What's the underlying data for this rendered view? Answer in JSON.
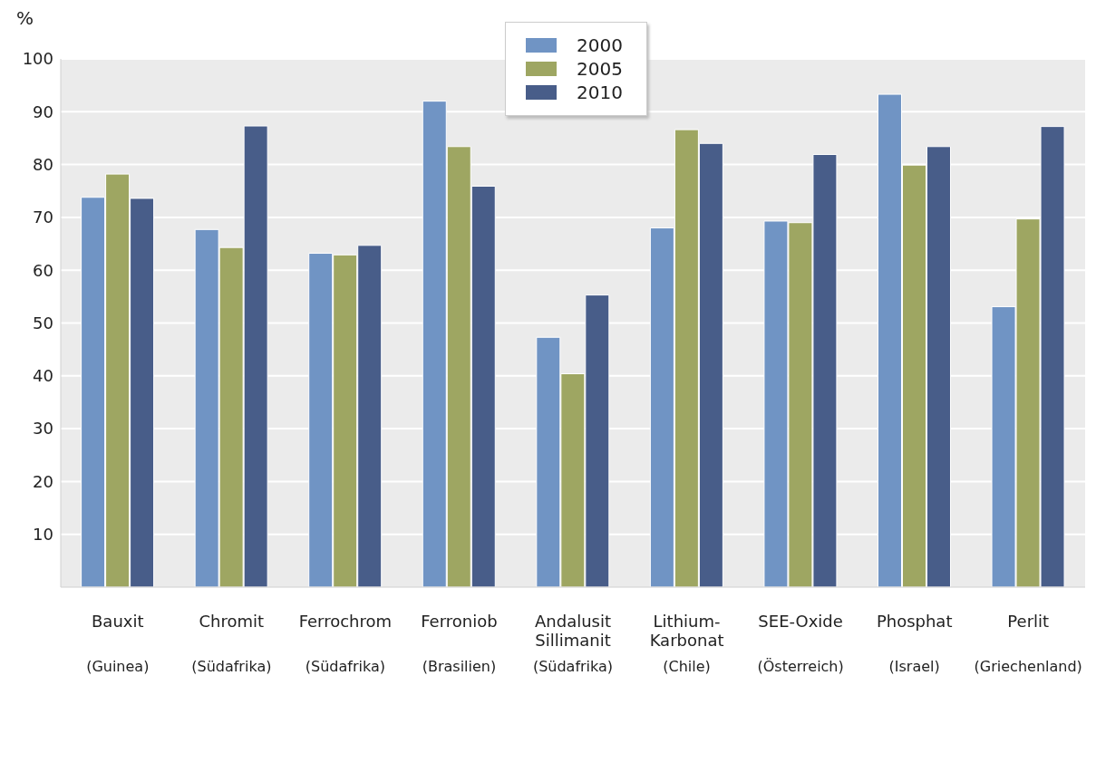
{
  "chart_data": {
    "type": "bar",
    "ylabel": "%",
    "categories": [
      "Bauxit\n(Guinea)",
      "Chromit\n(Südafrika)",
      "Ferrochrom\n(Südafrika)",
      "Ferroniob\n(Brasilien)",
      "Andalusit\nSillimanit\n(Südafrika)",
      "Lithium-\nKarbonat\n(Chile)",
      "SEE-Oxide\n(Österreich)",
      "Phosphat\n(Israel)",
      "Perlit\n(Griechenland)"
    ],
    "series": [
      {
        "name": "2000",
        "color": "#7094c4",
        "values": [
          73.8,
          67.7,
          63.2,
          92.0,
          47.3,
          68.0,
          69.3,
          93.3,
          53.1
        ]
      },
      {
        "name": "2005",
        "color": "#9ea662",
        "values": [
          78.2,
          64.3,
          62.9,
          83.4,
          40.4,
          86.6,
          69.0,
          79.9,
          69.7
        ]
      },
      {
        "name": "2010",
        "color": "#485d89",
        "values": [
          73.6,
          87.3,
          64.7,
          75.9,
          55.3,
          84.0,
          81.9,
          83.4,
          87.2
        ]
      }
    ],
    "ylim": [
      0,
      100
    ],
    "yticks": [
      10,
      20,
      30,
      40,
      50,
      60,
      70,
      80,
      90,
      100
    ],
    "grid": "y",
    "legend": "top"
  }
}
